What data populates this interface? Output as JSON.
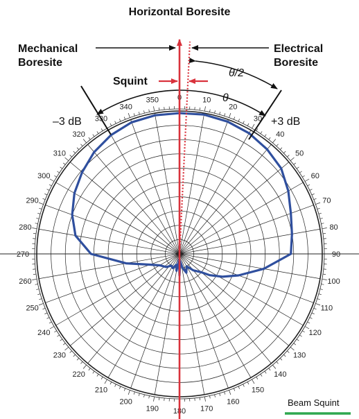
{
  "colors": {
    "pattern": "#2f4f9e",
    "boresite": "#d9323c",
    "squint_label": "#d9323c",
    "legend_line": "#2fa84f",
    "grid": "#222222"
  },
  "labels": {
    "title": "Horizontal Boresite",
    "mechanical": [
      "Mechanical",
      "Boresite"
    ],
    "electrical": [
      "Electrical",
      "Boresite"
    ],
    "squint": "Squint",
    "half_theta": "θ/2",
    "theta": "θ",
    "minus_3db": "–3 dB",
    "plus_3db": "+3 dB",
    "legend": "Beam Squint"
  },
  "angle_labels": [
    "0",
    "10",
    "20",
    "30",
    "40",
    "50",
    "60",
    "70",
    "80",
    "90",
    "100",
    "110",
    "120",
    "130",
    "140",
    "150",
    "160",
    "170",
    "180",
    "190",
    "200",
    "210",
    "220",
    "230",
    "240",
    "250",
    "260",
    "270",
    "280",
    "290",
    "300",
    "310",
    "320",
    "330",
    "340",
    "350"
  ],
  "pattern": {
    "description_values": "relative radius (0–1) vs. bearing in degrees",
    "points": [
      [
        0,
        0.985
      ],
      [
        10,
        0.99
      ],
      [
        20,
        0.985
      ],
      [
        30,
        0.975
      ],
      [
        40,
        0.955
      ],
      [
        50,
        0.93
      ],
      [
        60,
        0.88
      ],
      [
        70,
        0.83
      ],
      [
        80,
        0.8
      ],
      [
        90,
        0.78
      ],
      [
        100,
        0.6
      ],
      [
        110,
        0.44
      ],
      [
        118,
        0.34
      ],
      [
        125,
        0.26
      ],
      [
        130,
        0.2
      ],
      [
        140,
        0.15
      ],
      [
        150,
        0.1
      ],
      [
        160,
        0.14
      ],
      [
        168,
        0.1
      ],
      [
        175,
        0.05
      ],
      [
        180,
        0.15
      ],
      [
        185,
        0.04
      ],
      [
        190,
        0.12
      ],
      [
        197,
        0.08
      ],
      [
        205,
        0.11
      ],
      [
        215,
        0.1
      ],
      [
        225,
        0.13
      ],
      [
        240,
        0.16
      ],
      [
        250,
        0.22
      ],
      [
        260,
        0.38
      ],
      [
        270,
        0.62
      ],
      [
        280,
        0.74
      ],
      [
        290,
        0.8
      ],
      [
        300,
        0.85
      ],
      [
        310,
        0.89
      ],
      [
        320,
        0.93
      ],
      [
        330,
        0.96
      ],
      [
        340,
        0.98
      ],
      [
        350,
        0.985
      ]
    ]
  }
}
